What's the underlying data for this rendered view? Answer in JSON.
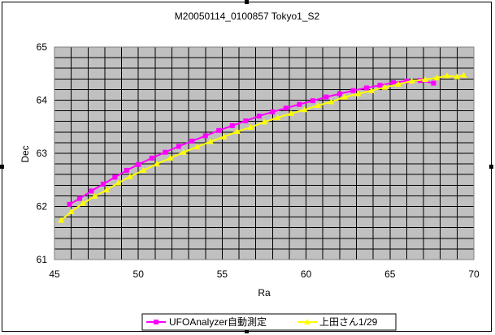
{
  "chart_data": {
    "type": "scatter",
    "title": "M20050114_0100857 Tokyo1_S2",
    "xlabel": "Ra",
    "ylabel": "Dec",
    "xlim": [
      45,
      70
    ],
    "ylim": [
      61,
      65
    ],
    "x_ticks": [
      45,
      50,
      55,
      60,
      65,
      70
    ],
    "y_ticks": [
      61,
      62,
      63,
      64,
      65
    ],
    "x_tick_labels": [
      "45",
      "50",
      "55",
      "60",
      "65",
      "70"
    ],
    "y_tick_labels": [
      "61",
      "62",
      "63",
      "64",
      "65"
    ],
    "minor_grid_x_step": 1,
    "minor_grid_y_step": 0.2,
    "plot_background": "#C0C0C0",
    "grid": true,
    "legend_position": "bottom",
    "series": [
      {
        "name": "UFOAnalyzer自動測定",
        "color": "#FF00FF",
        "marker": "square",
        "x": [
          45.9,
          46.5,
          47.2,
          47.9,
          48.6,
          49.3,
          50.0,
          50.8,
          51.6,
          52.4,
          53.2,
          54.0,
          54.8,
          55.6,
          56.4,
          57.2,
          58.0,
          58.8,
          59.6,
          60.4,
          61.2,
          62.0,
          62.8,
          63.6,
          64.4,
          65.2,
          66.0,
          66.8,
          67.6
        ],
        "y": [
          62.04,
          62.15,
          62.29,
          62.42,
          62.55,
          62.68,
          62.79,
          62.91,
          63.02,
          63.13,
          63.23,
          63.33,
          63.43,
          63.52,
          63.61,
          63.7,
          63.78,
          63.85,
          63.92,
          63.99,
          64.06,
          64.12,
          64.18,
          64.23,
          64.28,
          64.33,
          64.36,
          64.37,
          64.32
        ]
      },
      {
        "name": "上田さん1/29",
        "color": "#FFFF00",
        "marker": "triangle",
        "x": [
          45.4,
          46.0,
          46.7,
          47.4,
          48.1,
          48.8,
          49.5,
          50.3,
          51.1,
          51.9,
          52.7,
          53.5,
          54.3,
          55.1,
          55.9,
          56.7,
          57.5,
          58.3,
          59.1,
          59.9,
          60.7,
          61.5,
          62.3,
          63.1,
          63.9,
          64.7,
          65.5,
          66.3,
          67.1,
          67.8,
          68.4,
          69.0,
          69.4
        ],
        "y": [
          61.74,
          61.9,
          62.06,
          62.19,
          62.31,
          62.44,
          62.56,
          62.68,
          62.8,
          62.91,
          63.02,
          63.12,
          63.22,
          63.31,
          63.41,
          63.49,
          63.59,
          63.67,
          63.75,
          63.82,
          63.9,
          63.97,
          64.06,
          64.12,
          64.18,
          64.24,
          64.3,
          64.36,
          64.39,
          64.42,
          64.46,
          64.44,
          64.47
        ]
      }
    ]
  }
}
